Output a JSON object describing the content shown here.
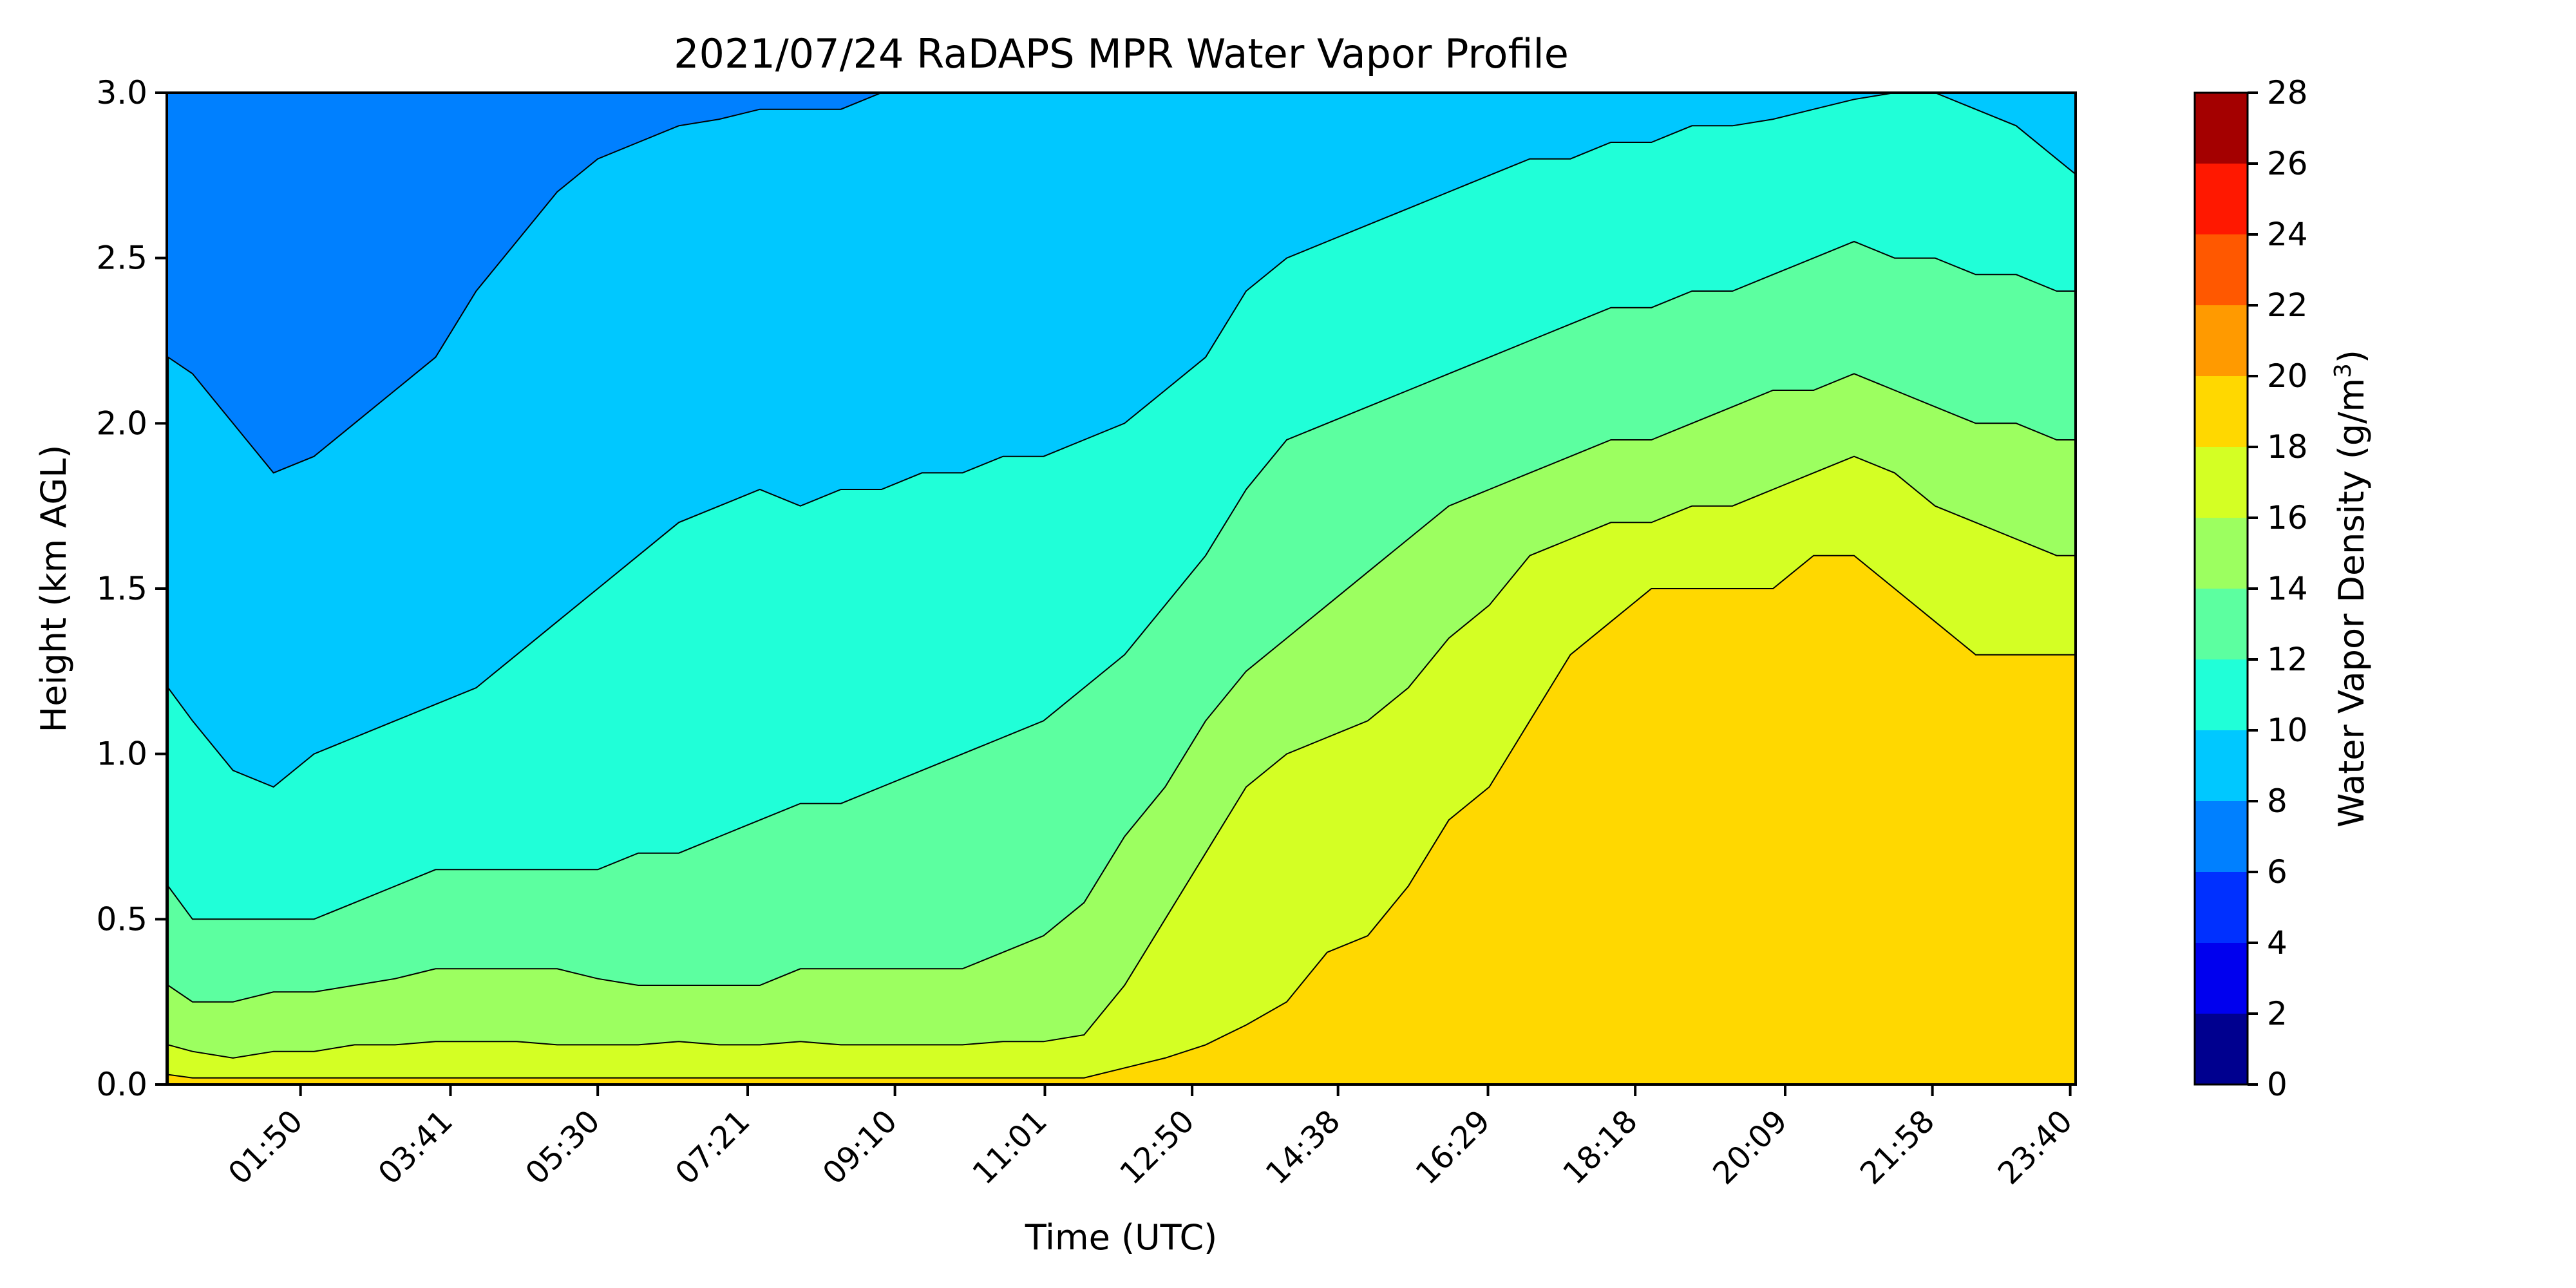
{
  "chart_data": {
    "type": "heatmap",
    "title": "2021/07/24 RaDAPS MPR Water Vapor Profile",
    "xlabel": "Time (UTC)",
    "ylabel": "Height (km AGL)",
    "x_tick_labels": [
      "01:50",
      "03:41",
      "05:30",
      "07:21",
      "09:10",
      "11:01",
      "12:50",
      "14:38",
      "16:29",
      "18:18",
      "20:09",
      "21:58",
      "23:40"
    ],
    "xlim": [
      "00:11",
      "23:44"
    ],
    "y_ticks": [
      0.0,
      0.5,
      1.0,
      1.5,
      2.0,
      2.5,
      3.0
    ],
    "y_tick_labels": [
      "0.0",
      "0.5",
      "1.0",
      "1.5",
      "2.0",
      "2.5",
      "3.0"
    ],
    "ylim": [
      0.0,
      3.0
    ],
    "colorbar": {
      "label_main": "Water Vapor Density (g/m",
      "label_sup": "3",
      "label_end": ")",
      "levels": [
        0,
        2,
        4,
        6,
        8,
        10,
        12,
        14,
        16,
        18,
        20,
        22,
        24,
        26,
        28
      ],
      "tick_labels": [
        "0",
        "2",
        "4",
        "6",
        "8",
        "10",
        "12",
        "14",
        "16",
        "18",
        "20",
        "22",
        "24",
        "26",
        "28"
      ],
      "colors": [
        "#00008f",
        "#0000ee",
        "#0030ff",
        "#0080ff",
        "#00c8ff",
        "#20ffd8",
        "#5cffa0",
        "#9cff60",
        "#d4ff24",
        "#ffd800",
        "#ff9a00",
        "#ff5800",
        "#ff1800",
        "#a40000"
      ]
    },
    "time_hours": [
      0.2,
      0.5,
      1.0,
      1.5,
      2.0,
      2.5,
      3.0,
      3.5,
      4.0,
      4.5,
      5.0,
      5.5,
      6.0,
      6.5,
      7.0,
      7.5,
      8.0,
      8.5,
      9.0,
      9.5,
      10.0,
      10.5,
      11.0,
      11.5,
      12.0,
      12.5,
      13.0,
      13.5,
      14.0,
      14.5,
      15.0,
      15.5,
      16.0,
      16.5,
      17.0,
      17.5,
      18.0,
      18.5,
      19.0,
      19.5,
      20.0,
      20.5,
      21.0,
      21.5,
      22.0,
      22.5,
      23.0,
      23.5,
      23.75
    ],
    "contour_boundaries_km": {
      "16": [
        0.03,
        0.02,
        0.02,
        0.02,
        0.02,
        0.02,
        0.02,
        0.02,
        0.02,
        0.02,
        0.02,
        0.02,
        0.02,
        0.02,
        0.02,
        0.02,
        0.02,
        0.02,
        0.02,
        0.02,
        0.02,
        0.02,
        0.02,
        0.02,
        0.05,
        0.08,
        0.12,
        0.18,
        0.25,
        0.4,
        0.45,
        0.6,
        0.8,
        0.9,
        1.1,
        1.3,
        1.4,
        1.5,
        1.5,
        1.5,
        1.5,
        1.6,
        1.6,
        1.5,
        1.4,
        1.3,
        1.3,
        1.3,
        1.3
      ],
      "14": [
        0.12,
        0.1,
        0.08,
        0.1,
        0.1,
        0.12,
        0.12,
        0.13,
        0.13,
        0.13,
        0.12,
        0.12,
        0.12,
        0.13,
        0.12,
        0.12,
        0.13,
        0.12,
        0.12,
        0.12,
        0.12,
        0.13,
        0.13,
        0.15,
        0.3,
        0.5,
        0.7,
        0.9,
        1.0,
        1.05,
        1.1,
        1.2,
        1.35,
        1.45,
        1.6,
        1.65,
        1.7,
        1.7,
        1.75,
        1.75,
        1.8,
        1.85,
        1.9,
        1.85,
        1.75,
        1.7,
        1.65,
        1.6,
        1.6
      ],
      "12": [
        0.3,
        0.25,
        0.25,
        0.28,
        0.28,
        0.3,
        0.32,
        0.35,
        0.35,
        0.35,
        0.35,
        0.32,
        0.3,
        0.3,
        0.3,
        0.3,
        0.35,
        0.35,
        0.35,
        0.35,
        0.35,
        0.4,
        0.45,
        0.55,
        0.75,
        0.9,
        1.1,
        1.25,
        1.35,
        1.45,
        1.55,
        1.65,
        1.75,
        1.8,
        1.85,
        1.9,
        1.95,
        1.95,
        2.0,
        2.05,
        2.1,
        2.1,
        2.15,
        2.1,
        2.05,
        2.0,
        2.0,
        1.95,
        1.95
      ],
      "10": [
        0.6,
        0.5,
        0.5,
        0.5,
        0.5,
        0.55,
        0.6,
        0.65,
        0.65,
        0.65,
        0.65,
        0.65,
        0.7,
        0.7,
        0.75,
        0.8,
        0.85,
        0.85,
        0.9,
        0.95,
        1.0,
        1.05,
        1.1,
        1.2,
        1.3,
        1.45,
        1.6,
        1.8,
        1.95,
        2.0,
        2.05,
        2.1,
        2.15,
        2.2,
        2.25,
        2.3,
        2.35,
        2.35,
        2.4,
        2.4,
        2.45,
        2.5,
        2.55,
        2.5,
        2.5,
        2.45,
        2.45,
        2.4,
        2.4
      ],
      "8": [
        1.2,
        1.1,
        0.95,
        0.9,
        1.0,
        1.05,
        1.1,
        1.15,
        1.2,
        1.3,
        1.4,
        1.5,
        1.6,
        1.7,
        1.75,
        1.8,
        1.75,
        1.8,
        1.8,
        1.85,
        1.85,
        1.9,
        1.9,
        1.95,
        2.0,
        2.1,
        2.2,
        2.4,
        2.5,
        2.55,
        2.6,
        2.65,
        2.7,
        2.75,
        2.8,
        2.8,
        2.85,
        2.85,
        2.9,
        2.9,
        2.92,
        2.95,
        2.98,
        3.0,
        3.0,
        2.95,
        2.9,
        2.8,
        2.75
      ],
      "6": [
        2.2,
        2.15,
        2.0,
        1.85,
        1.9,
        2.0,
        2.1,
        2.2,
        2.4,
        2.55,
        2.7,
        2.8,
        2.85,
        2.9,
        2.92,
        2.95,
        2.95,
        2.95,
        3.0,
        3.0,
        3.0,
        3.0,
        3.0,
        3.0,
        3.0,
        3.0,
        3.0,
        3.0,
        3.0,
        3.0,
        3.0,
        3.0,
        3.0,
        3.0,
        3.0,
        3.0,
        3.0,
        3.0,
        3.0,
        3.0,
        3.0,
        3.0,
        3.0,
        3.0,
        3.0,
        3.0,
        3.0,
        3.0,
        3.0
      ]
    }
  }
}
